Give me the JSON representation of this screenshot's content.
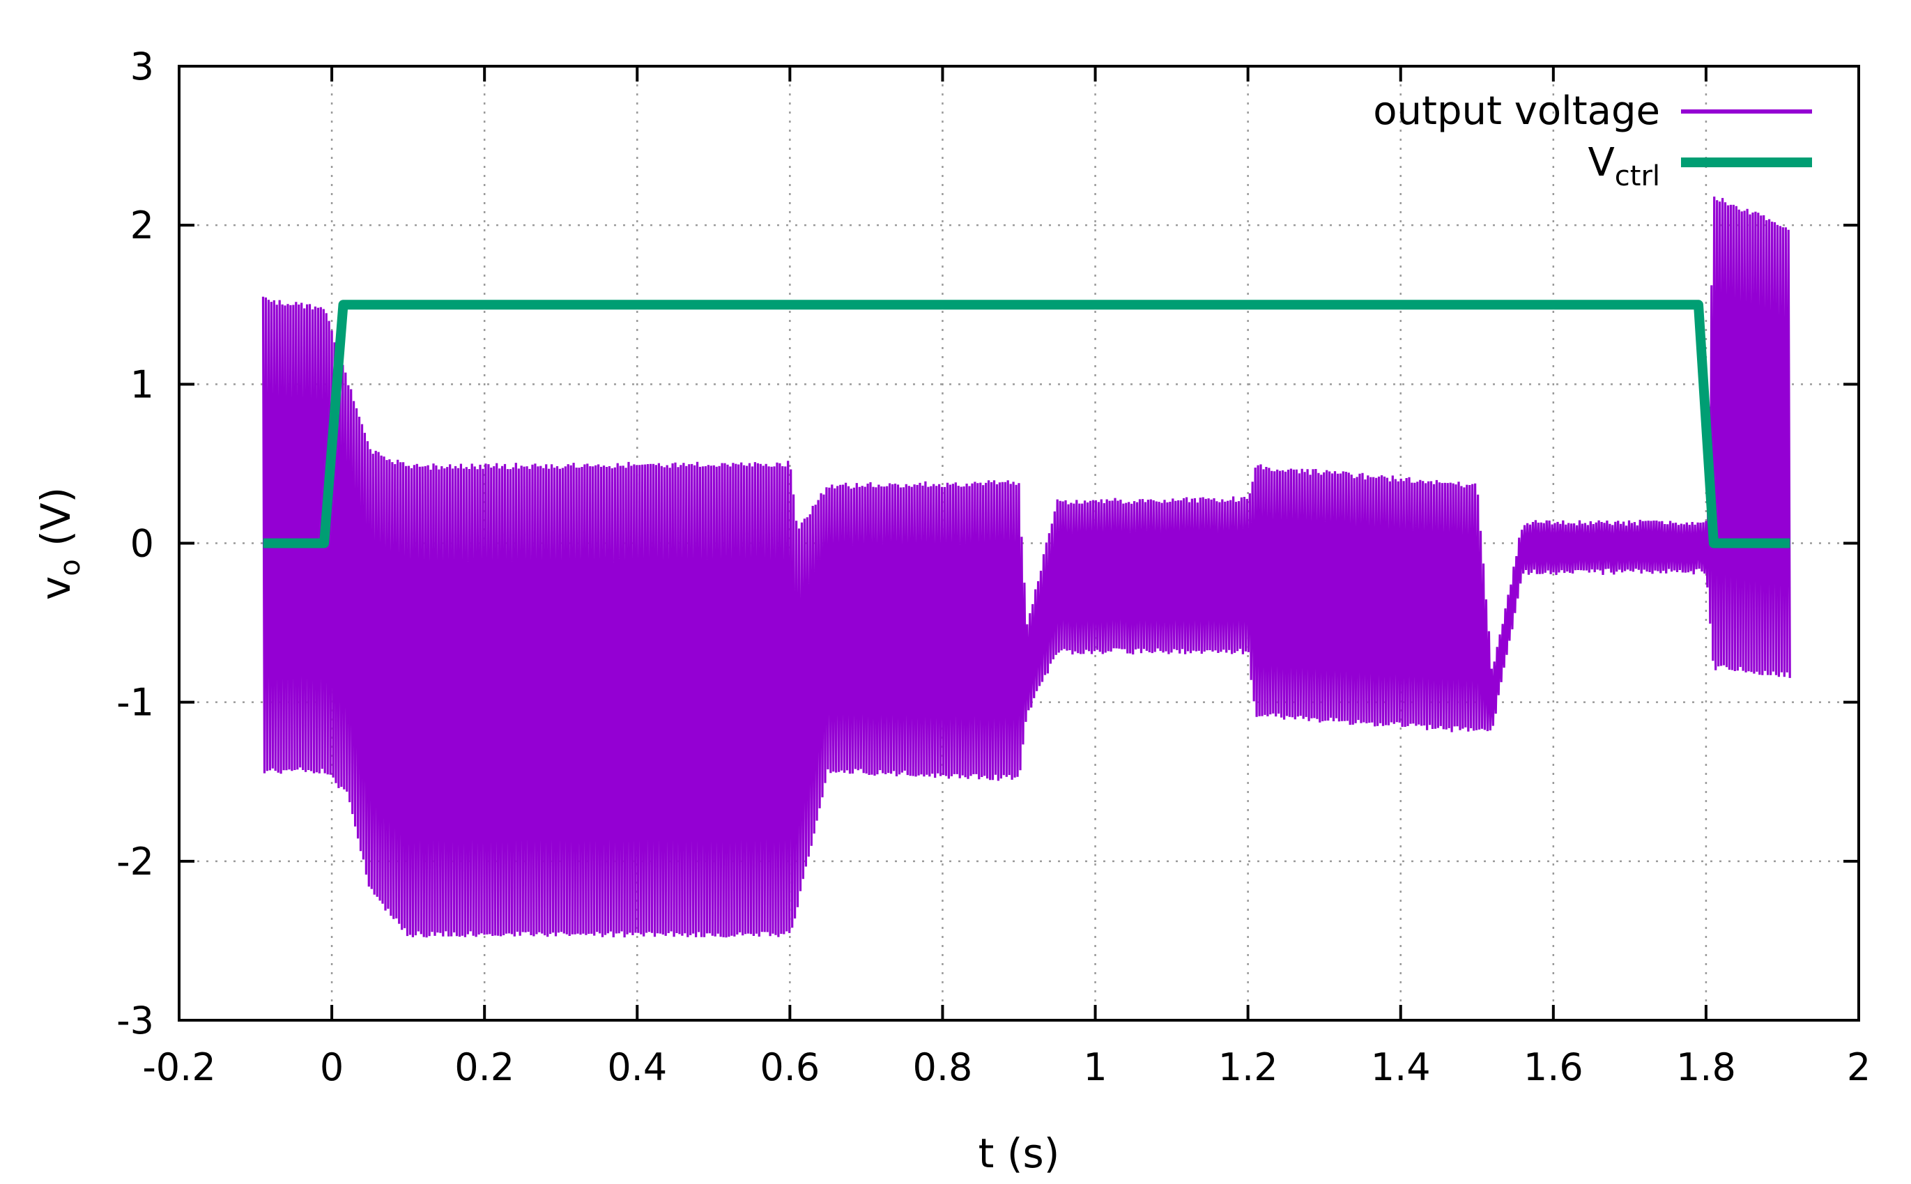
{
  "chart_data": {
    "type": "line",
    "title": "",
    "xlabel": "t (s)",
    "ylabel": {
      "base": "v",
      "sub": "o",
      "unit": " (V)"
    },
    "xlim": [
      -0.2,
      2.0
    ],
    "ylim": [
      -3,
      3
    ],
    "xticks": [
      -0.2,
      0,
      0.2,
      0.4,
      0.6,
      0.8,
      1,
      1.2,
      1.4,
      1.6,
      1.8,
      2
    ],
    "xtick_labels": [
      "-0.2",
      "0",
      "0.2",
      "0.4",
      "0.6",
      "0.8",
      "1",
      "1.2",
      "1.4",
      "1.6",
      "1.8",
      "2"
    ],
    "yticks": [
      -3,
      -2,
      -1,
      0,
      1,
      2,
      3
    ],
    "ytick_labels": [
      "-3",
      "-2",
      "-1",
      "0",
      "1",
      "2",
      "3"
    ],
    "grid": true,
    "legend_position": "top-right",
    "series": [
      {
        "name": "output voltage",
        "color": "#9400d3",
        "style": "oscillating",
        "envelope": {
          "t": [
            -0.09,
            -0.01,
            0.02,
            0.05,
            0.1,
            0.6,
            0.61,
            0.65,
            0.9,
            0.91,
            0.95,
            1.2,
            1.21,
            1.5,
            1.52,
            1.56,
            1.8,
            1.81,
            1.91
          ],
          "upper": [
            1.55,
            1.5,
            1.05,
            0.6,
            0.5,
            0.52,
            0.1,
            0.38,
            0.4,
            -0.5,
            0.28,
            0.3,
            0.5,
            0.38,
            -0.8,
            0.15,
            0.15,
            2.2,
            2.0
          ],
          "lower": [
            -1.45,
            -1.45,
            -1.6,
            -2.2,
            -2.48,
            -2.48,
            -2.3,
            -1.45,
            -1.5,
            -1.1,
            -0.7,
            -0.7,
            -1.1,
            -1.2,
            -1.2,
            -0.2,
            -0.2,
            -0.8,
            -0.85
          ]
        }
      },
      {
        "name_base": "V",
        "name_sub": "ctrl",
        "color": "#009e73",
        "x": [
          -0.09,
          -0.01,
          0.015,
          1.79,
          1.81,
          1.91
        ],
        "y": [
          0,
          0,
          1.5,
          1.5,
          0,
          0
        ]
      }
    ]
  }
}
